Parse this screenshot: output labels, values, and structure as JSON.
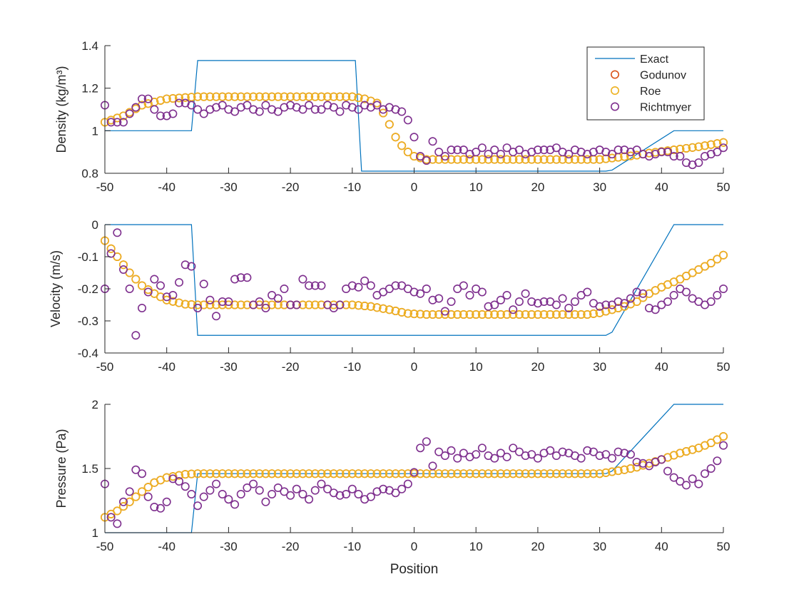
{
  "chart_data": [
    {
      "type": "line",
      "ylabel": "Density (kg/m³)",
      "xlabel": "",
      "xlim": [
        -50,
        50
      ],
      "ylim": [
        0.8,
        1.4
      ],
      "xticks": [
        "-50",
        "-40",
        "-30",
        "-20",
        "-10",
        "0",
        "10",
        "20",
        "30",
        "40",
        "50"
      ],
      "yticks": [
        "0.8",
        "1",
        "1.2",
        "1.4"
      ],
      "grid": false,
      "legend": {
        "position": "top-right",
        "entries": [
          "Exact",
          "Godunov",
          "Roe",
          "Richtmyer"
        ]
      },
      "series": [
        {
          "name": "Exact",
          "style": "line",
          "color": "#0072BD",
          "x": [
            -50,
            -36,
            -35,
            -9.5,
            -8.5,
            31,
            32,
            42,
            50
          ],
          "y": [
            1.0,
            1.0,
            1.33,
            1.33,
            0.81,
            0.81,
            0.815,
            1.0,
            1.0
          ]
        },
        {
          "name": "Godunov",
          "style": "marker",
          "color": "#D95319",
          "knots": [
            [
              -50,
              1.04
            ],
            [
              -47,
              1.07
            ],
            [
              -44,
              1.12
            ],
            [
              -40,
              1.15
            ],
            [
              -35,
              1.16
            ],
            [
              -10,
              1.16
            ],
            [
              -8,
              1.15
            ],
            [
              -6,
              1.13
            ],
            [
              -4.5,
              1.06
            ],
            [
              -3,
              0.97
            ],
            [
              -1.5,
              0.91
            ],
            [
              0,
              0.88
            ],
            [
              2,
              0.865
            ],
            [
              5,
              0.865
            ],
            [
              30,
              0.865
            ],
            [
              33,
              0.875
            ],
            [
              36,
              0.885
            ],
            [
              38,
              0.895
            ],
            [
              42,
              0.91
            ],
            [
              46,
              0.925
            ],
            [
              50,
              0.945
            ]
          ]
        },
        {
          "name": "Roe",
          "style": "marker",
          "color": "#EDB120",
          "knots": [
            [
              -50,
              1.04
            ],
            [
              -47,
              1.07
            ],
            [
              -44,
              1.12
            ],
            [
              -40,
              1.15
            ],
            [
              -35,
              1.16
            ],
            [
              -10,
              1.16
            ],
            [
              -8,
              1.15
            ],
            [
              -6,
              1.13
            ],
            [
              -4.5,
              1.06
            ],
            [
              -3,
              0.97
            ],
            [
              -1.5,
              0.91
            ],
            [
              0,
              0.88
            ],
            [
              2,
              0.865
            ],
            [
              5,
              0.865
            ],
            [
              30,
              0.865
            ],
            [
              33,
              0.875
            ],
            [
              36,
              0.885
            ],
            [
              38,
              0.895
            ],
            [
              42,
              0.91
            ],
            [
              46,
              0.925
            ],
            [
              50,
              0.945
            ]
          ]
        },
        {
          "name": "Richtmyer",
          "style": "marker",
          "color": "#7E2F8E",
          "x0": -50,
          "dx": 1,
          "y": [
            1.12,
            1.04,
            1.04,
            1.04,
            1.08,
            1.11,
            1.15,
            1.15,
            1.1,
            1.07,
            1.07,
            1.08,
            1.13,
            1.13,
            1.12,
            1.1,
            1.08,
            1.1,
            1.11,
            1.12,
            1.1,
            1.09,
            1.11,
            1.12,
            1.1,
            1.09,
            1.12,
            1.1,
            1.09,
            1.11,
            1.12,
            1.11,
            1.1,
            1.12,
            1.1,
            1.1,
            1.12,
            1.11,
            1.09,
            1.12,
            1.11,
            1.1,
            1.12,
            1.11,
            1.12,
            1.1,
            1.11,
            1.1,
            1.09,
            1.05,
            0.97,
            0.88,
            0.86,
            0.95,
            0.9,
            0.88,
            0.91,
            0.91,
            0.91,
            0.89,
            0.9,
            0.92,
            0.89,
            0.91,
            0.89,
            0.92,
            0.9,
            0.91,
            0.89,
            0.9,
            0.91,
            0.91,
            0.91,
            0.92,
            0.9,
            0.89,
            0.91,
            0.9,
            0.89,
            0.9,
            0.91,
            0.9,
            0.89,
            0.91,
            0.91,
            0.9,
            0.91,
            0.89,
            0.88,
            0.89,
            0.9,
            0.9,
            0.88,
            0.88,
            0.85,
            0.84,
            0.85,
            0.88,
            0.89,
            0.9,
            0.92
          ]
        }
      ]
    },
    {
      "type": "line",
      "ylabel": "Velocity (m/s)",
      "xlabel": "",
      "xlim": [
        -50,
        50
      ],
      "ylim": [
        -0.4,
        0
      ],
      "xticks": [
        "-50",
        "-40",
        "-30",
        "-20",
        "-10",
        "0",
        "10",
        "20",
        "30",
        "40",
        "50"
      ],
      "yticks": [
        "-0.4",
        "-0.3",
        "-0.2",
        "-0.1",
        "0"
      ],
      "grid": false,
      "series": [
        {
          "name": "Exact",
          "style": "line",
          "color": "#0072BD",
          "x": [
            -50,
            -36,
            -35,
            31,
            32,
            42,
            50
          ],
          "y": [
            0,
            0,
            -0.345,
            -0.345,
            -0.335,
            0,
            0
          ]
        },
        {
          "name": "Godunov",
          "style": "marker",
          "color": "#D95319",
          "knots": [
            [
              -50,
              -0.05
            ],
            [
              -48,
              -0.1
            ],
            [
              -46,
              -0.15
            ],
            [
              -44,
              -0.19
            ],
            [
              -42,
              -0.215
            ],
            [
              -40,
              -0.235
            ],
            [
              -37,
              -0.248
            ],
            [
              -35,
              -0.25
            ],
            [
              -10,
              -0.25
            ],
            [
              -7,
              -0.255
            ],
            [
              -4,
              -0.265
            ],
            [
              -1,
              -0.277
            ],
            [
              2,
              -0.28
            ],
            [
              28,
              -0.28
            ],
            [
              30,
              -0.275
            ],
            [
              32,
              -0.265
            ],
            [
              34,
              -0.255
            ],
            [
              36,
              -0.24
            ],
            [
              38,
              -0.215
            ],
            [
              40,
              -0.195
            ],
            [
              43,
              -0.17
            ],
            [
              46,
              -0.14
            ],
            [
              48,
              -0.12
            ],
            [
              50,
              -0.095
            ]
          ]
        },
        {
          "name": "Roe",
          "style": "marker",
          "color": "#EDB120",
          "knots": [
            [
              -50,
              -0.05
            ],
            [
              -48,
              -0.1
            ],
            [
              -46,
              -0.15
            ],
            [
              -44,
              -0.19
            ],
            [
              -42,
              -0.215
            ],
            [
              -40,
              -0.235
            ],
            [
              -37,
              -0.248
            ],
            [
              -35,
              -0.25
            ],
            [
              -10,
              -0.25
            ],
            [
              -7,
              -0.255
            ],
            [
              -4,
              -0.265
            ],
            [
              -1,
              -0.277
            ],
            [
              2,
              -0.28
            ],
            [
              28,
              -0.28
            ],
            [
              30,
              -0.275
            ],
            [
              32,
              -0.265
            ],
            [
              34,
              -0.255
            ],
            [
              36,
              -0.24
            ],
            [
              38,
              -0.215
            ],
            [
              40,
              -0.195
            ],
            [
              43,
              -0.17
            ],
            [
              46,
              -0.14
            ],
            [
              48,
              -0.12
            ],
            [
              50,
              -0.095
            ]
          ]
        },
        {
          "name": "Richtmyer",
          "style": "marker",
          "color": "#7E2F8E",
          "x0": -50,
          "dx": 1,
          "y": [
            -0.2,
            -0.09,
            -0.025,
            -0.14,
            -0.2,
            -0.345,
            -0.26,
            -0.21,
            -0.17,
            -0.19,
            -0.225,
            -0.22,
            -0.18,
            -0.125,
            -0.13,
            -0.26,
            -0.185,
            -0.235,
            -0.285,
            -0.24,
            -0.24,
            -0.17,
            -0.165,
            -0.165,
            -0.25,
            -0.24,
            -0.26,
            -0.22,
            -0.23,
            -0.2,
            -0.25,
            -0.25,
            -0.17,
            -0.19,
            -0.19,
            -0.19,
            -0.25,
            -0.26,
            -0.25,
            -0.2,
            -0.19,
            -0.195,
            -0.175,
            -0.19,
            -0.22,
            -0.21,
            -0.2,
            -0.19,
            -0.19,
            -0.2,
            -0.21,
            -0.215,
            -0.2,
            -0.235,
            -0.23,
            -0.27,
            -0.24,
            -0.2,
            -0.19,
            -0.22,
            -0.2,
            -0.21,
            -0.255,
            -0.25,
            -0.235,
            -0.22,
            -0.265,
            -0.24,
            -0.215,
            -0.24,
            -0.245,
            -0.24,
            -0.24,
            -0.25,
            -0.23,
            -0.26,
            -0.24,
            -0.22,
            -0.21,
            -0.245,
            -0.255,
            -0.25,
            -0.25,
            -0.24,
            -0.245,
            -0.23,
            -0.21,
            -0.215,
            -0.26,
            -0.265,
            -0.25,
            -0.24,
            -0.22,
            -0.2,
            -0.21,
            -0.23,
            -0.24,
            -0.25,
            -0.24,
            -0.22,
            -0.2
          ]
        }
      ]
    },
    {
      "type": "line",
      "ylabel": "Pressure (Pa)",
      "xlabel": "Position",
      "xlim": [
        -50,
        50
      ],
      "ylim": [
        1,
        2
      ],
      "xticks": [
        "-50",
        "-40",
        "-30",
        "-20",
        "-10",
        "0",
        "10",
        "20",
        "30",
        "40",
        "50"
      ],
      "yticks": [
        "1",
        "1.5",
        "2"
      ],
      "grid": false,
      "series": [
        {
          "name": "Exact",
          "style": "line",
          "color": "#0072BD",
          "x": [
            -50,
            -36,
            -35,
            31,
            32,
            42,
            50
          ],
          "y": [
            1.0,
            1.0,
            1.46,
            1.46,
            1.48,
            2.0,
            2.0
          ]
        },
        {
          "name": "Godunov",
          "style": "marker",
          "color": "#D95319",
          "knots": [
            [
              -50,
              1.12
            ],
            [
              -48,
              1.17
            ],
            [
              -46,
              1.24
            ],
            [
              -44,
              1.32
            ],
            [
              -42,
              1.39
            ],
            [
              -40,
              1.43
            ],
            [
              -37,
              1.455
            ],
            [
              -35,
              1.46
            ],
            [
              30,
              1.46
            ],
            [
              32,
              1.475
            ],
            [
              34,
              1.49
            ],
            [
              36,
              1.51
            ],
            [
              38,
              1.54
            ],
            [
              40,
              1.57
            ],
            [
              43,
              1.62
            ],
            [
              46,
              1.66
            ],
            [
              48,
              1.7
            ],
            [
              50,
              1.75
            ]
          ]
        },
        {
          "name": "Roe",
          "style": "marker",
          "color": "#EDB120",
          "knots": [
            [
              -50,
              1.12
            ],
            [
              -48,
              1.17
            ],
            [
              -46,
              1.24
            ],
            [
              -44,
              1.32
            ],
            [
              -42,
              1.39
            ],
            [
              -40,
              1.43
            ],
            [
              -37,
              1.455
            ],
            [
              -35,
              1.46
            ],
            [
              30,
              1.46
            ],
            [
              32,
              1.475
            ],
            [
              34,
              1.49
            ],
            [
              36,
              1.51
            ],
            [
              38,
              1.54
            ],
            [
              40,
              1.57
            ],
            [
              43,
              1.62
            ],
            [
              46,
              1.66
            ],
            [
              48,
              1.7
            ],
            [
              50,
              1.75
            ]
          ]
        },
        {
          "name": "Richtmyer",
          "style": "marker",
          "color": "#7E2F8E",
          "x0": -50,
          "dx": 1,
          "y": [
            1.38,
            1.12,
            1.07,
            1.24,
            1.32,
            1.49,
            1.46,
            1.28,
            1.2,
            1.19,
            1.24,
            1.42,
            1.4,
            1.36,
            1.3,
            1.21,
            1.28,
            1.33,
            1.38,
            1.3,
            1.26,
            1.22,
            1.3,
            1.35,
            1.38,
            1.33,
            1.24,
            1.3,
            1.35,
            1.32,
            1.29,
            1.34,
            1.3,
            1.26,
            1.33,
            1.38,
            1.34,
            1.31,
            1.29,
            1.3,
            1.34,
            1.3,
            1.26,
            1.28,
            1.32,
            1.34,
            1.33,
            1.31,
            1.34,
            1.38,
            1.47,
            1.66,
            1.71,
            1.52,
            1.63,
            1.6,
            1.64,
            1.58,
            1.62,
            1.59,
            1.61,
            1.66,
            1.6,
            1.58,
            1.62,
            1.59,
            1.66,
            1.63,
            1.6,
            1.61,
            1.58,
            1.62,
            1.64,
            1.6,
            1.63,
            1.62,
            1.6,
            1.58,
            1.64,
            1.63,
            1.6,
            1.61,
            1.58,
            1.63,
            1.62,
            1.61,
            1.55,
            1.54,
            1.52,
            1.55,
            1.57,
            1.48,
            1.43,
            1.4,
            1.37,
            1.42,
            1.38,
            1.46,
            1.5,
            1.56,
            1.68
          ]
        }
      ]
    }
  ]
}
